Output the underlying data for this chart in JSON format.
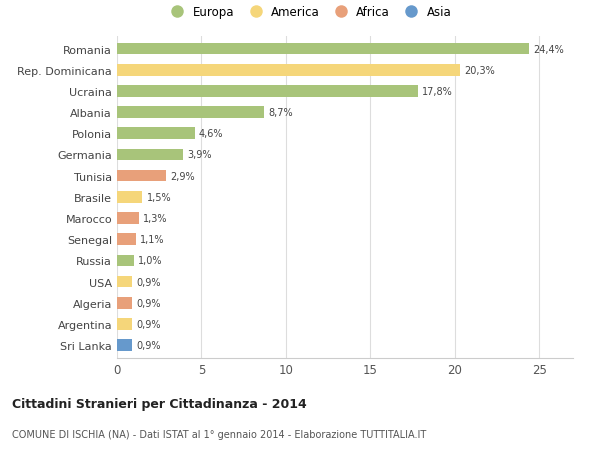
{
  "countries": [
    "Romania",
    "Rep. Dominicana",
    "Ucraina",
    "Albania",
    "Polonia",
    "Germania",
    "Tunisia",
    "Brasile",
    "Marocco",
    "Senegal",
    "Russia",
    "USA",
    "Algeria",
    "Argentina",
    "Sri Lanka"
  ],
  "values": [
    24.4,
    20.3,
    17.8,
    8.7,
    4.6,
    3.9,
    2.9,
    1.5,
    1.3,
    1.1,
    1.0,
    0.9,
    0.9,
    0.9,
    0.9
  ],
  "labels": [
    "24,4%",
    "20,3%",
    "17,8%",
    "8,7%",
    "4,6%",
    "3,9%",
    "2,9%",
    "1,5%",
    "1,3%",
    "1,1%",
    "1,0%",
    "0,9%",
    "0,9%",
    "0,9%",
    "0,9%"
  ],
  "continents": [
    "Europa",
    "America",
    "Europa",
    "Europa",
    "Europa",
    "Europa",
    "Africa",
    "America",
    "Africa",
    "Africa",
    "Europa",
    "America",
    "Africa",
    "America",
    "Asia"
  ],
  "colors": {
    "Europa": "#a8c47a",
    "America": "#f5d67a",
    "Africa": "#e8a07a",
    "Asia": "#6699cc"
  },
  "legend_order": [
    "Europa",
    "America",
    "Africa",
    "Asia"
  ],
  "title": "Cittadini Stranieri per Cittadinanza - 2014",
  "subtitle": "COMUNE DI ISCHIA (NA) - Dati ISTAT al 1° gennaio 2014 - Elaborazione TUTTITALIA.IT",
  "xlim": [
    0,
    27
  ],
  "xticks": [
    0,
    5,
    10,
    15,
    20,
    25
  ],
  "bg_color": "#ffffff",
  "grid_color": "#dddddd",
  "bar_height": 0.55
}
